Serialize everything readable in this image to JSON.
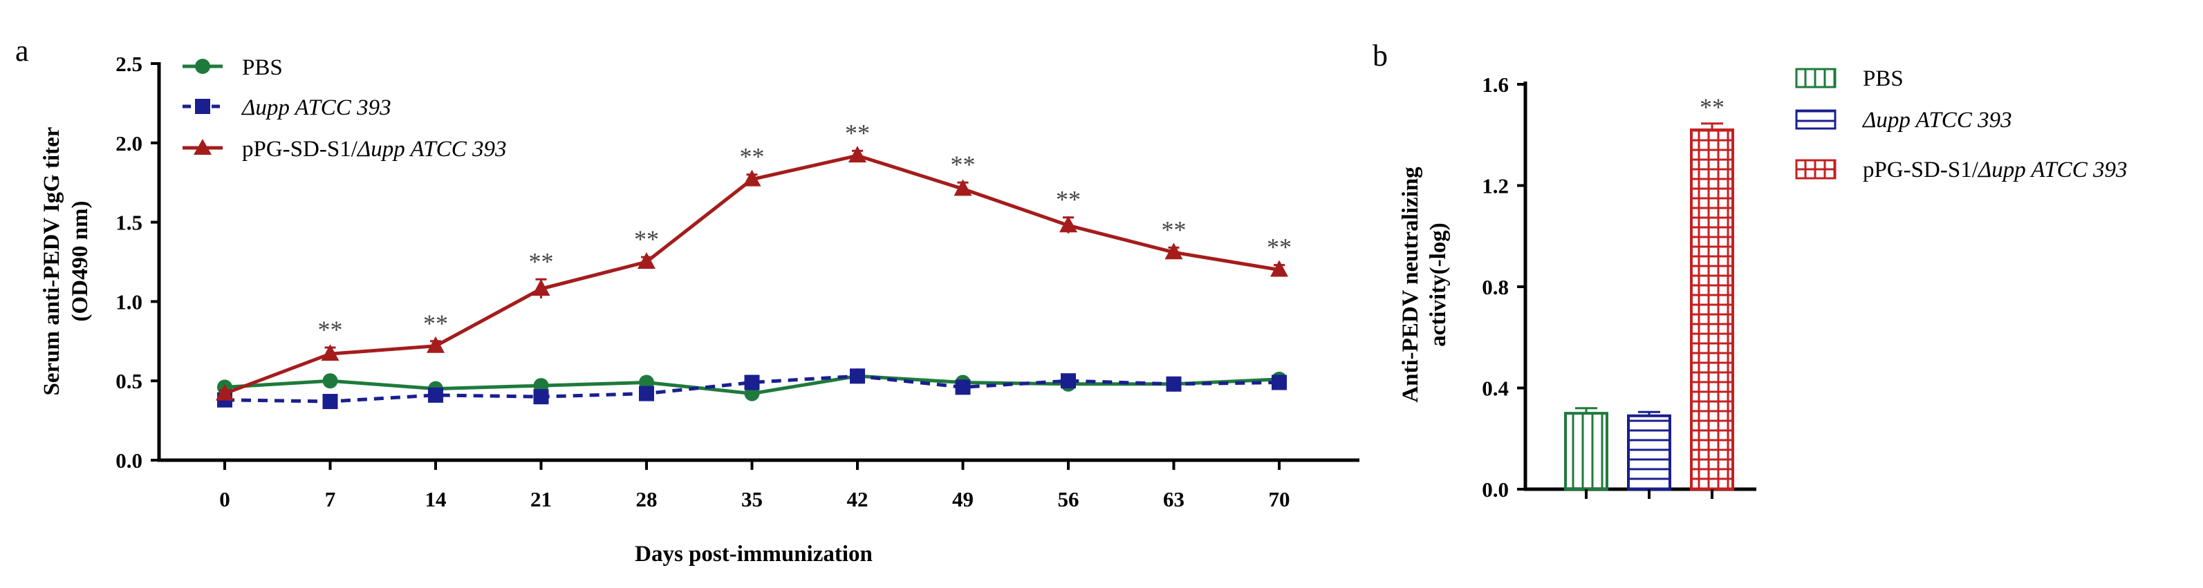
{
  "panels": {
    "a": {
      "label": "a",
      "chart_data": {
        "type": "line",
        "title": "",
        "xlabel": "Days post-immunization",
        "ylabel_lines": [
          "Serum anti-PEDV IgG titer",
          "(OD490 nm)"
        ],
        "x": [
          0,
          7,
          14,
          21,
          28,
          35,
          42,
          49,
          56,
          63,
          70
        ],
        "xticks": [
          "0",
          "7",
          "14",
          "21",
          "28",
          "35",
          "42",
          "49",
          "56",
          "63",
          "70"
        ],
        "yticks": [
          "0.0",
          "0.5",
          "1.0",
          "1.5",
          "2.0",
          "2.5"
        ],
        "ylim": [
          0,
          2.5
        ],
        "grid": false,
        "legend_position": "top-left",
        "series": [
          {
            "name": "PBS",
            "italic": false,
            "color": "#1e7a3c",
            "marker": "circle",
            "dash": false,
            "values": [
              0.46,
              0.5,
              0.45,
              0.47,
              0.49,
              0.42,
              0.53,
              0.49,
              0.48,
              0.48,
              0.51
            ]
          },
          {
            "name": "Δupp ATCC 393",
            "italic": true,
            "color": "#1a1f8f",
            "marker": "square",
            "dash": true,
            "values": [
              0.38,
              0.37,
              0.41,
              0.4,
              0.42,
              0.49,
              0.53,
              0.46,
              0.5,
              0.48,
              0.49
            ]
          },
          {
            "name_prefix": "pPG-SD-S1/",
            "name_italic_part": "Δupp ATCC 393",
            "color": "#a51c1c",
            "marker": "triangle",
            "dash": false,
            "values": [
              0.42,
              0.67,
              0.72,
              1.08,
              1.25,
              1.77,
              1.92,
              1.71,
              1.48,
              1.31,
              1.2
            ],
            "errors": [
              0.02,
              0.04,
              0.03,
              0.06,
              0.03,
              0.03,
              0.03,
              0.04,
              0.05,
              0.03,
              0.03
            ]
          }
        ],
        "annotation": "**",
        "annotated_x": [
          7,
          14,
          21,
          28,
          35,
          42,
          49,
          56,
          63,
          70
        ]
      }
    },
    "b": {
      "label": "b",
      "chart_data": {
        "type": "bar",
        "title": "",
        "xlabel": "",
        "ylabel_lines": [
          "Anti-PEDV neutralizing",
          "activity(-log)"
        ],
        "yticks": [
          "0.0",
          "0.4",
          "0.8",
          "1.2",
          "1.6"
        ],
        "ylim": [
          0,
          1.6
        ],
        "grid": false,
        "legend_position": "top-right",
        "series": [
          {
            "name": "PBS",
            "italic": false,
            "color": "#1e7a3c",
            "pattern": "vertical",
            "value": 0.3,
            "error": 0.02
          },
          {
            "name": "Δupp ATCC 393",
            "italic": true,
            "color": "#1a1f8f",
            "pattern": "horizontal",
            "value": 0.29,
            "error": 0.015
          },
          {
            "name_prefix": "pPG-SD-S1/",
            "name_italic_part": "Δupp ATCC 393",
            "color": "#c42020",
            "pattern": "grid",
            "value": 1.42,
            "error": 0.025
          }
        ],
        "annotation": "**",
        "annotated_bars": [
          2
        ]
      }
    }
  }
}
